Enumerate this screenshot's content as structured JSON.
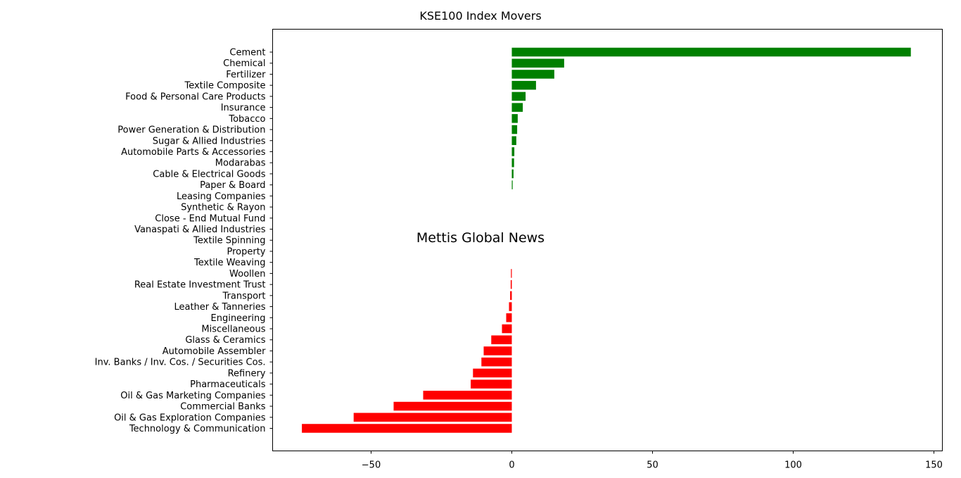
{
  "chart_data": {
    "type": "bar",
    "orientation": "horizontal",
    "title": "KSE100 Index Movers",
    "xlabel": "",
    "ylabel": "",
    "xlim": [
      -85,
      153
    ],
    "xticks": [
      -50,
      0,
      50,
      100,
      150
    ],
    "grid": false,
    "watermark": "Mettis Global News",
    "colors": {
      "positive": "#008000",
      "negative": "#ff0000",
      "watermark": "#f0c040"
    },
    "categories": [
      "Cement",
      "Chemical",
      "Fertilizer",
      "Textile Composite",
      "Food & Personal Care Products",
      "Insurance",
      "Tobacco",
      "Power Generation & Distribution",
      "Sugar & Allied Industries",
      "Automobile Parts & Accessories",
      "Modarabas",
      "Cable & Electrical Goods",
      "Paper & Board",
      "Leasing Companies",
      "Synthetic & Rayon",
      "Close - End Mutual Fund",
      "Vanaspati & Allied Industries",
      "Textile Spinning",
      "Property",
      "Textile Weaving",
      "Woollen",
      "Real Estate Investment Trust",
      "Transport",
      "Leather & Tanneries",
      "Engineering",
      "Miscellaneous",
      "Glass & Ceramics",
      "Automobile Assembler",
      "Inv. Banks / Inv. Cos. / Securities Cos.",
      "Refinery",
      "Pharmaceuticals",
      "Oil & Gas Marketing Companies",
      "Commercial Banks",
      "Oil & Gas Exploration Companies",
      "Technology & Communication"
    ],
    "values": [
      141.8,
      18.6,
      15.1,
      8.6,
      4.9,
      3.9,
      2.1,
      1.9,
      1.6,
      0.9,
      0.8,
      0.6,
      0.3,
      0,
      0,
      0,
      0,
      0,
      0,
      0,
      -0.3,
      -0.4,
      -0.6,
      -1.0,
      -2.0,
      -3.5,
      -7.3,
      -10.0,
      -10.8,
      -13.8,
      -14.6,
      -31.5,
      -42.0,
      -56.2,
      -74.6
    ]
  }
}
